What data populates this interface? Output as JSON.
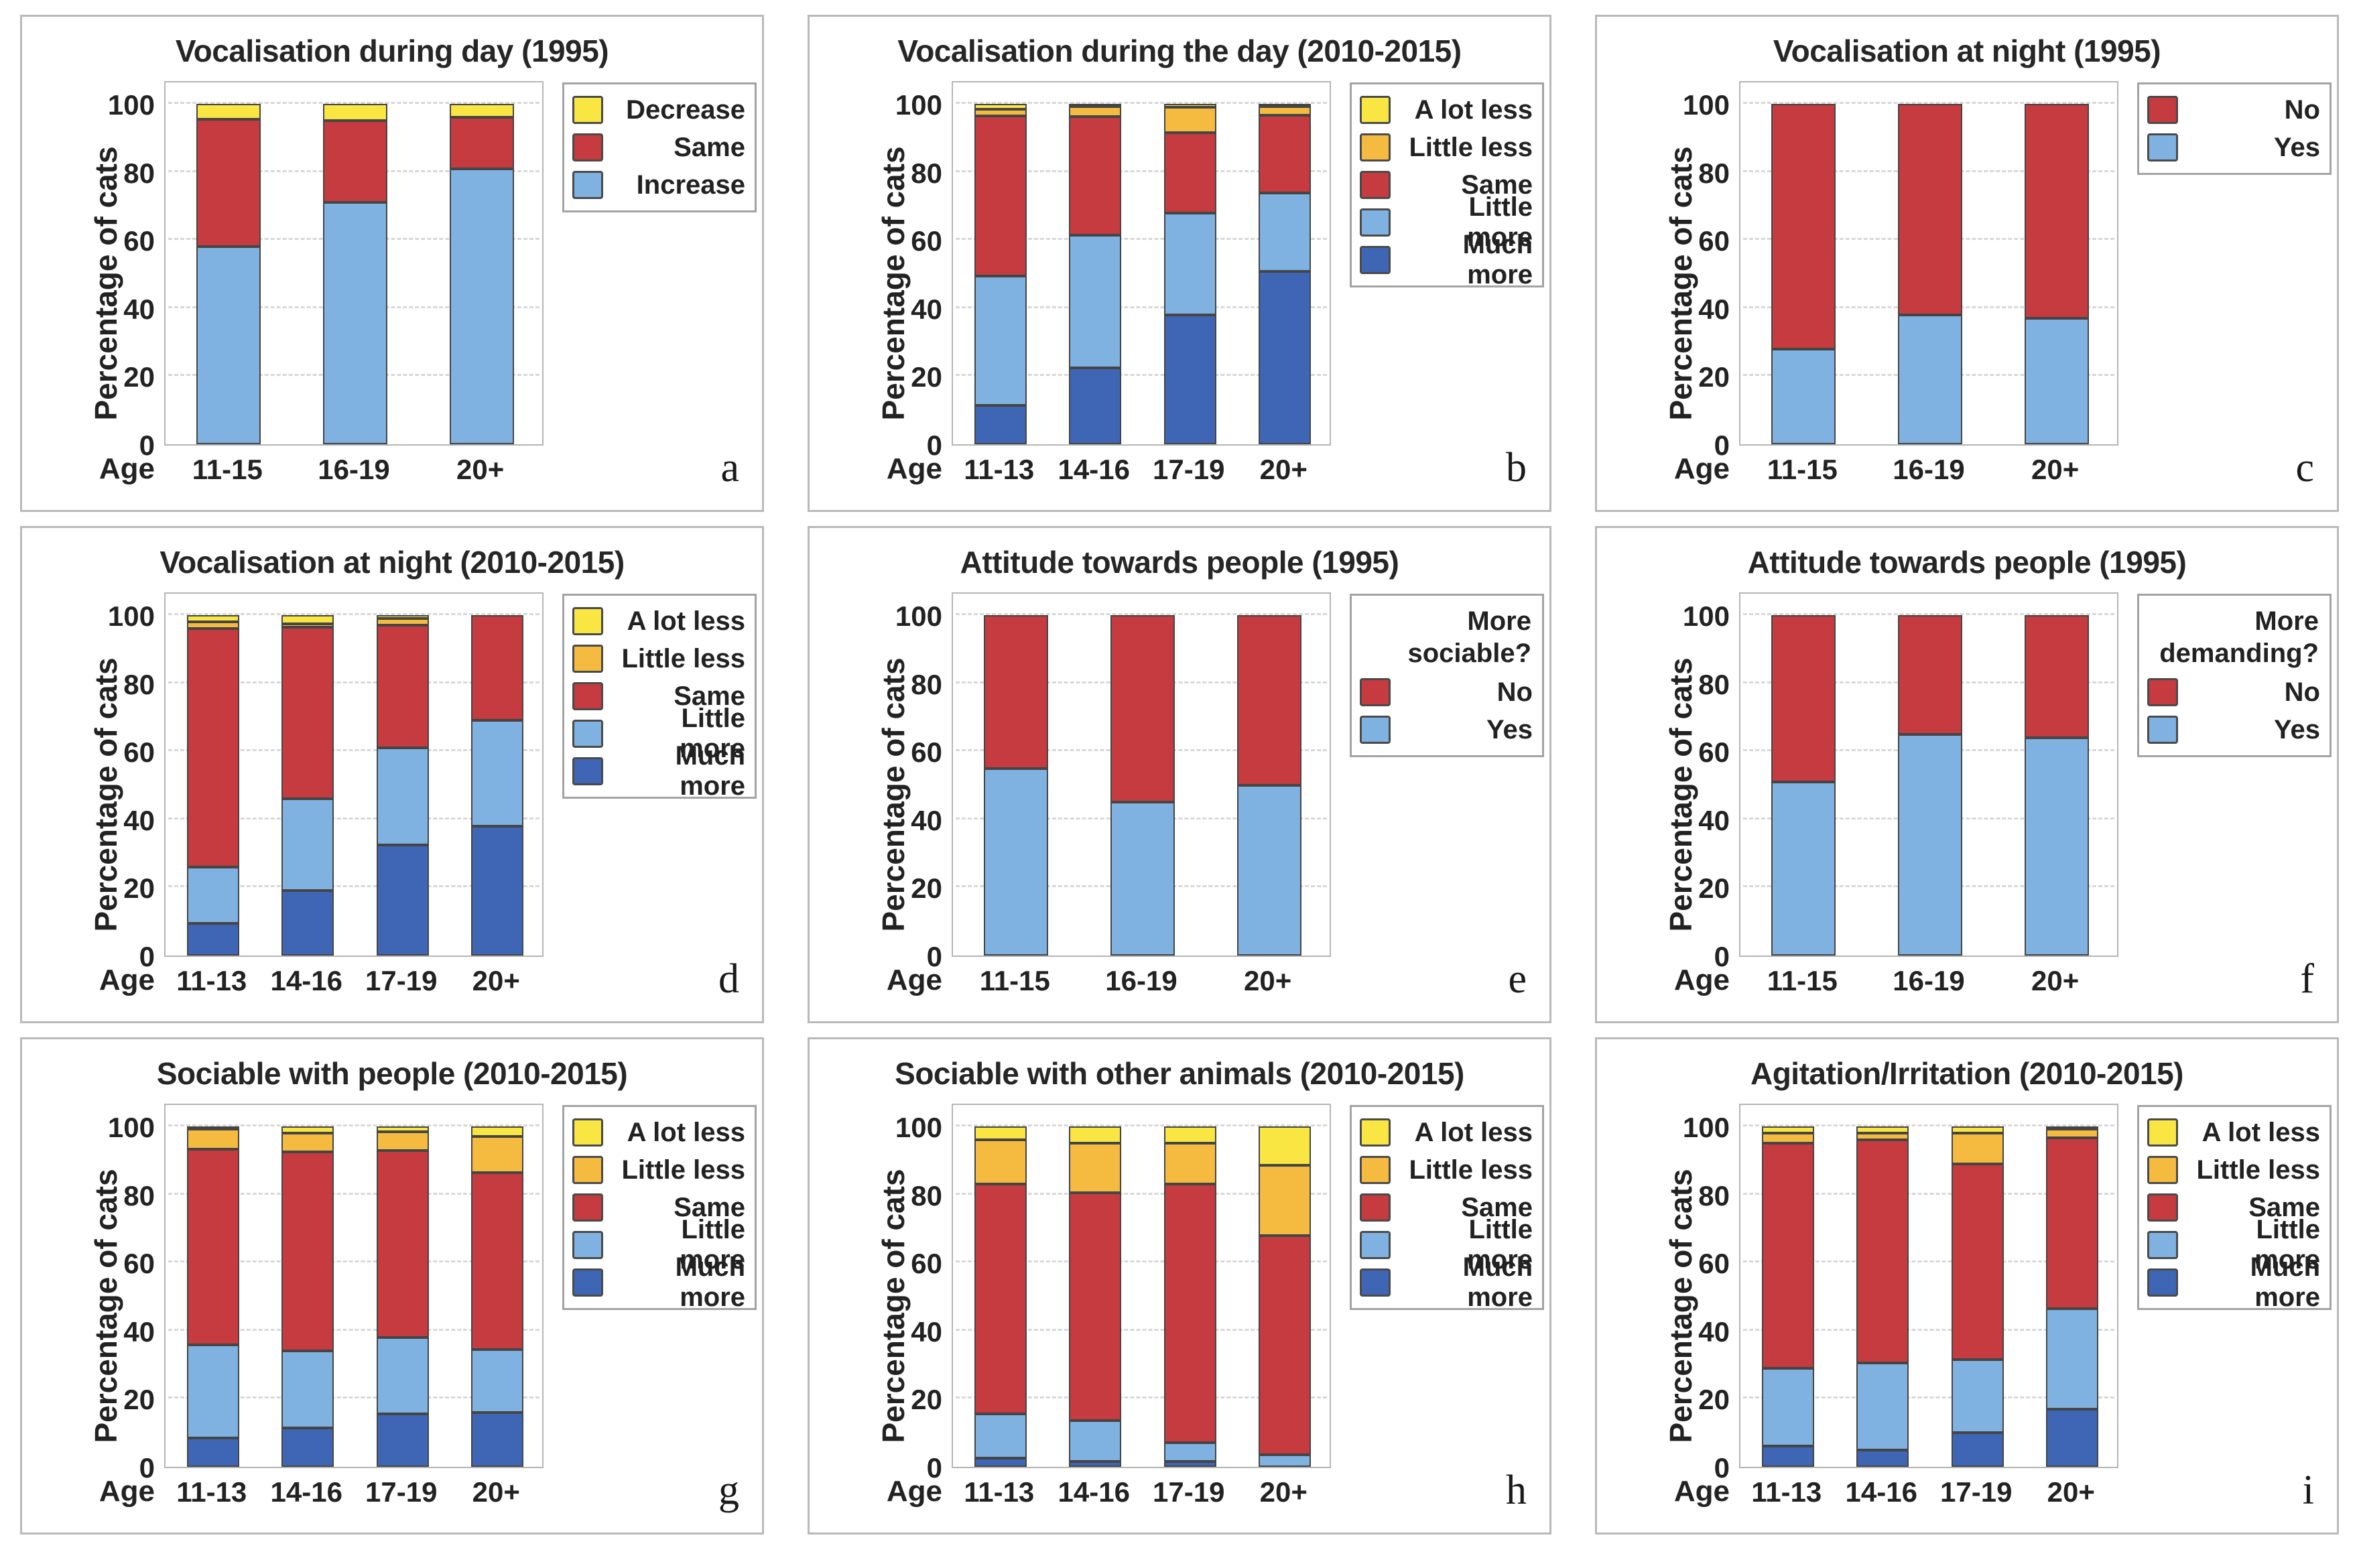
{
  "axes": {
    "y_label": "Percentage of cats",
    "x_label": "Age",
    "y_ticks": [
      0,
      20,
      40,
      60,
      80,
      100
    ],
    "ylim": [
      0,
      100
    ]
  },
  "colors": {
    "red": "#c53b3f",
    "light_blue": "#7fb2e0",
    "dark_blue": "#3e66b5",
    "yellow": "#f9e642",
    "orange": "#f5ba40",
    "segment_border": "#454545",
    "panel_border": "#b9b9b9",
    "grid": "#d8d8d8"
  },
  "chart_data": [
    {
      "id": "a",
      "letter": "a",
      "type": "stacked-bar",
      "title": "Vocalisation during day (1995)",
      "xlabel": "Age",
      "ylabel": "Percentage of cats",
      "ylim": [
        0,
        100
      ],
      "categories": [
        "11-15",
        "16-19",
        "20+"
      ],
      "legend": {
        "title": "",
        "items": [
          {
            "label": "Decrease",
            "color": "yellow"
          },
          {
            "label": "Same",
            "color": "red"
          },
          {
            "label": "Increase",
            "color": "light_blue"
          }
        ]
      },
      "series": [
        {
          "name": "Increase",
          "color": "light_blue",
          "values": [
            58,
            71,
            81
          ]
        },
        {
          "name": "Same",
          "color": "red",
          "values": [
            37.5,
            24,
            15
          ]
        },
        {
          "name": "Decrease",
          "color": "yellow",
          "values": [
            4.5,
            5,
            4
          ]
        }
      ]
    },
    {
      "id": "b",
      "letter": "b",
      "type": "stacked-bar",
      "title": "Vocalisation during the day (2010-2015)",
      "xlabel": "Age",
      "ylabel": "Percentage of cats",
      "ylim": [
        0,
        100
      ],
      "categories": [
        "11-13",
        "14-16",
        "17-19",
        "20+"
      ],
      "legend": {
        "title": "",
        "items": [
          {
            "label": "A lot less",
            "color": "yellow"
          },
          {
            "label": "Little less",
            "color": "orange"
          },
          {
            "label": "Same",
            "color": "red"
          },
          {
            "label": "Little more",
            "color": "light_blue"
          },
          {
            "label": "Much more",
            "color": "dark_blue"
          }
        ]
      },
      "series": [
        {
          "name": "Much more",
          "color": "dark_blue",
          "values": [
            11.5,
            22.5,
            38,
            51
          ]
        },
        {
          "name": "Little more",
          "color": "light_blue",
          "values": [
            38,
            39,
            30,
            23
          ]
        },
        {
          "name": "Same",
          "color": "red",
          "values": [
            47,
            35,
            23.5,
            23
          ]
        },
        {
          "name": "Little less",
          "color": "orange",
          "values": [
            2,
            3,
            7.5,
            2.5
          ]
        },
        {
          "name": "A lot less",
          "color": "yellow",
          "values": [
            1.5,
            0.5,
            1,
            0.5
          ]
        }
      ]
    },
    {
      "id": "c",
      "letter": "c",
      "type": "stacked-bar",
      "title": "Vocalisation at night (1995)",
      "xlabel": "Age",
      "ylabel": "Percentage of cats",
      "ylim": [
        0,
        100
      ],
      "categories": [
        "11-15",
        "16-19",
        "20+"
      ],
      "legend": {
        "title": "",
        "items": [
          {
            "label": "No",
            "color": "red"
          },
          {
            "label": "Yes",
            "color": "light_blue"
          }
        ]
      },
      "series": [
        {
          "name": "Yes",
          "color": "light_blue",
          "values": [
            28,
            38,
            37
          ]
        },
        {
          "name": "No",
          "color": "red",
          "values": [
            72,
            62,
            63
          ]
        }
      ]
    },
    {
      "id": "d",
      "letter": "d",
      "type": "stacked-bar",
      "title": "Vocalisation at night (2010-2015)",
      "xlabel": "Age",
      "ylabel": "Percentage of cats",
      "ylim": [
        0,
        100
      ],
      "categories": [
        "11-13",
        "14-16",
        "17-19",
        "20+"
      ],
      "legend": {
        "title": "",
        "items": [
          {
            "label": "A lot less",
            "color": "yellow"
          },
          {
            "label": "Little less",
            "color": "orange"
          },
          {
            "label": "Same",
            "color": "red"
          },
          {
            "label": "Little more",
            "color": "light_blue"
          },
          {
            "label": "Much more",
            "color": "dark_blue"
          }
        ]
      },
      "series": [
        {
          "name": "Much more",
          "color": "dark_blue",
          "values": [
            9.5,
            19,
            32.5,
            38
          ]
        },
        {
          "name": "Little more",
          "color": "light_blue",
          "values": [
            16.5,
            27,
            28.5,
            31
          ]
        },
        {
          "name": "Same",
          "color": "red",
          "values": [
            70,
            50.5,
            36,
            31
          ]
        },
        {
          "name": "Little less",
          "color": "orange",
          "values": [
            2,
            1,
            2,
            0
          ]
        },
        {
          "name": "A lot less",
          "color": "yellow",
          "values": [
            2,
            2.5,
            1,
            0
          ]
        }
      ]
    },
    {
      "id": "e",
      "letter": "e",
      "type": "stacked-bar",
      "title": "Attitude towards people (1995)",
      "xlabel": "Age",
      "ylabel": "Percentage of cats",
      "ylim": [
        0,
        100
      ],
      "categories": [
        "11-15",
        "16-19",
        "20+"
      ],
      "legend": {
        "title": "More\nsociable?",
        "items": [
          {
            "label": "No",
            "color": "red"
          },
          {
            "label": "Yes",
            "color": "light_blue"
          }
        ]
      },
      "series": [
        {
          "name": "Yes",
          "color": "light_blue",
          "values": [
            55,
            45,
            50
          ]
        },
        {
          "name": "No",
          "color": "red",
          "values": [
            45,
            55,
            50
          ]
        }
      ]
    },
    {
      "id": "f",
      "letter": "f",
      "type": "stacked-bar",
      "title": "Attitude towards people (1995)",
      "xlabel": "Age",
      "ylabel": "Percentage of cats",
      "ylim": [
        0,
        100
      ],
      "categories": [
        "11-15",
        "16-19",
        "20+"
      ],
      "legend": {
        "title": "More\ndemanding?",
        "items": [
          {
            "label": "No",
            "color": "red"
          },
          {
            "label": "Yes",
            "color": "light_blue"
          }
        ]
      },
      "series": [
        {
          "name": "Yes",
          "color": "light_blue",
          "values": [
            51,
            65,
            64
          ]
        },
        {
          "name": "No",
          "color": "red",
          "values": [
            49,
            35,
            36
          ]
        }
      ]
    },
    {
      "id": "g",
      "letter": "g",
      "type": "stacked-bar",
      "title": "Sociable with people (2010-2015)",
      "xlabel": "Age",
      "ylabel": "Percentage of cats",
      "ylim": [
        0,
        100
      ],
      "categories": [
        "11-13",
        "14-16",
        "17-19",
        "20+"
      ],
      "legend": {
        "title": "",
        "items": [
          {
            "label": "A lot less",
            "color": "yellow"
          },
          {
            "label": "Little less",
            "color": "orange"
          },
          {
            "label": "Same",
            "color": "red"
          },
          {
            "label": "Little more",
            "color": "light_blue"
          },
          {
            "label": "Much more",
            "color": "dark_blue"
          }
        ]
      },
      "series": [
        {
          "name": "Much more",
          "color": "dark_blue",
          "values": [
            8.5,
            11.5,
            15.5,
            16
          ]
        },
        {
          "name": "Little more",
          "color": "light_blue",
          "values": [
            27.5,
            22.5,
            22.5,
            18.5
          ]
        },
        {
          "name": "Same",
          "color": "red",
          "values": [
            57.5,
            58.5,
            55,
            52
          ]
        },
        {
          "name": "Little less",
          "color": "orange",
          "values": [
            6,
            5.5,
            5.5,
            10.5
          ]
        },
        {
          "name": "A lot less",
          "color": "yellow",
          "values": [
            0.5,
            2,
            1.5,
            3
          ]
        }
      ]
    },
    {
      "id": "h",
      "letter": "h",
      "type": "stacked-bar",
      "title": "Sociable with other animals (2010-2015)",
      "xlabel": "Age",
      "ylabel": "Percentage of cats",
      "ylim": [
        0,
        100
      ],
      "categories": [
        "11-13",
        "14-16",
        "17-19",
        "20+"
      ],
      "legend": {
        "title": "",
        "items": [
          {
            "label": "A lot less",
            "color": "yellow"
          },
          {
            "label": "Little less",
            "color": "orange"
          },
          {
            "label": "Same",
            "color": "red"
          },
          {
            "label": "Little more",
            "color": "light_blue"
          },
          {
            "label": "Much more",
            "color": "dark_blue"
          }
        ]
      },
      "series": [
        {
          "name": "Much more",
          "color": "dark_blue",
          "values": [
            2.5,
            1.5,
            1.5,
            0
          ]
        },
        {
          "name": "Little more",
          "color": "light_blue",
          "values": [
            13,
            12,
            5.5,
            3.5
          ]
        },
        {
          "name": "Same",
          "color": "red",
          "values": [
            67.5,
            67,
            76,
            64.5
          ]
        },
        {
          "name": "Little less",
          "color": "orange",
          "values": [
            13,
            14.5,
            12,
            20.5
          ]
        },
        {
          "name": "A lot less",
          "color": "yellow",
          "values": [
            4,
            5,
            5,
            11.5
          ]
        }
      ]
    },
    {
      "id": "i",
      "letter": "i",
      "type": "stacked-bar",
      "title": "Agitation/Irritation (2010-2015)",
      "xlabel": "Age",
      "ylabel": "Percentage of cats",
      "ylim": [
        0,
        100
      ],
      "categories": [
        "11-13",
        "14-16",
        "17-19",
        "20+"
      ],
      "legend": {
        "title": "",
        "items": [
          {
            "label": "A lot less",
            "color": "yellow"
          },
          {
            "label": "Little less",
            "color": "orange"
          },
          {
            "label": "Same",
            "color": "red"
          },
          {
            "label": "Little more",
            "color": "light_blue"
          },
          {
            "label": "Much more",
            "color": "dark_blue"
          }
        ]
      },
      "series": [
        {
          "name": "Much more",
          "color": "dark_blue",
          "values": [
            6,
            5,
            10,
            17
          ]
        },
        {
          "name": "Little more",
          "color": "light_blue",
          "values": [
            23,
            25.5,
            21.5,
            29.5
          ]
        },
        {
          "name": "Same",
          "color": "red",
          "values": [
            66,
            65.5,
            57.5,
            50.5
          ]
        },
        {
          "name": "Little less",
          "color": "orange",
          "values": [
            3,
            2,
            9,
            2.5
          ]
        },
        {
          "name": "A lot less",
          "color": "yellow",
          "values": [
            2,
            2,
            2,
            0.5
          ]
        }
      ]
    }
  ]
}
